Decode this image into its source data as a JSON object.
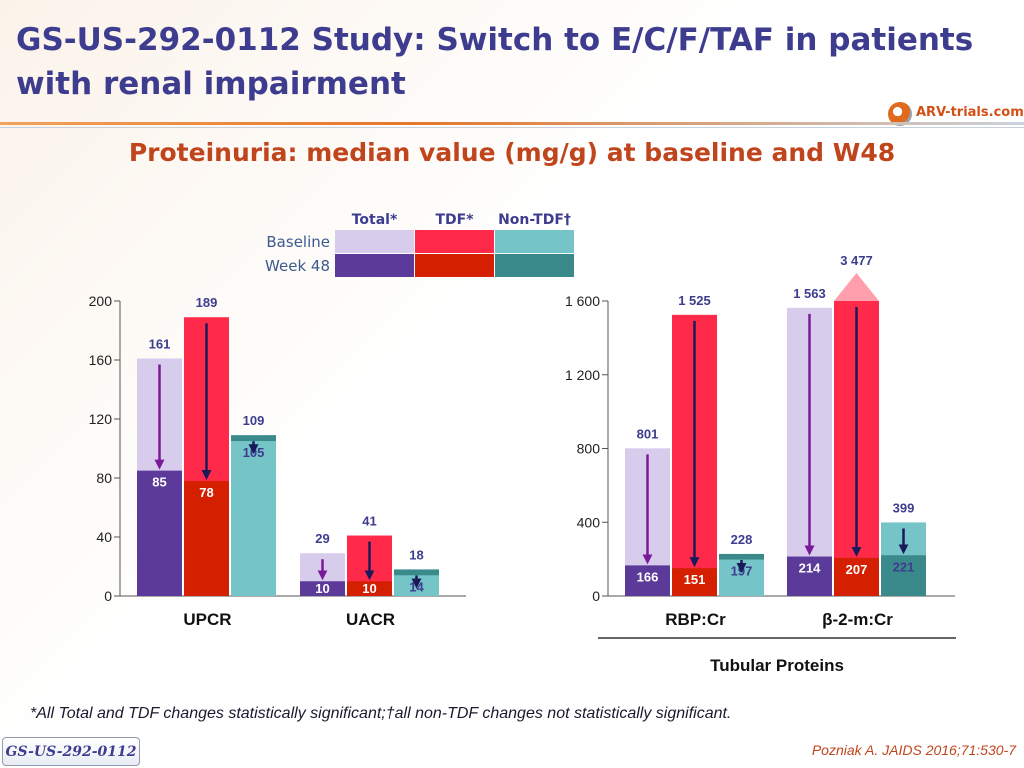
{
  "title": "GS-US-292-0112 Study: Switch to E/C/F/TAF in patients with renal impairment",
  "subtitle": "Proteinuria: median value (mg/g) at baseline and W48",
  "logo_text": "ARV-trials.com",
  "legend": {
    "columns": [
      "Total*",
      "TDF*",
      "Non-TDF†"
    ],
    "rows": [
      "Baseline",
      "Week 48"
    ]
  },
  "colors": {
    "total_baseline": "#d8ccec",
    "total_w48": "#5c3a9a",
    "tdf_baseline": "#ff2a4a",
    "tdf_w48": "#d42000",
    "nontdf_baseline": "#74c4c8",
    "nontdf_w48": "#3a8a8c",
    "arrow_total": "#7a1a9a",
    "arrow_other": "#1a1a5a",
    "label": "#3d3c8f"
  },
  "chart_data": [
    {
      "type": "bar",
      "categories": [
        "UPCR",
        "UACR"
      ],
      "series": [
        {
          "name": "Total*",
          "baseline": [
            161,
            29
          ],
          "week48": [
            85,
            10
          ]
        },
        {
          "name": "TDF*",
          "baseline": [
            189,
            41
          ],
          "week48": [
            78,
            10
          ]
        },
        {
          "name": "Non-TDF†",
          "baseline": [
            109,
            18
          ],
          "week48": [
            105,
            14
          ]
        }
      ],
      "yticks": [
        "0",
        "40",
        "80",
        "120",
        "160",
        "200"
      ],
      "ylim": [
        0,
        200
      ]
    },
    {
      "type": "bar",
      "categories": [
        "RBP:Cr",
        "β-2-m:Cr"
      ],
      "series": [
        {
          "name": "Total*",
          "baseline": [
            801,
            1563
          ],
          "week48": [
            166,
            214
          ]
        },
        {
          "name": "TDF*",
          "baseline": [
            1525,
            3477
          ],
          "week48": [
            151,
            207
          ]
        },
        {
          "name": "Non-TDF†",
          "baseline": [
            228,
            399
          ],
          "week48": [
            197,
            221
          ]
        }
      ],
      "baseline_labels": [
        [
          "801",
          "1 525",
          "228"
        ],
        [
          "1 563",
          "3 477",
          "399"
        ]
      ],
      "week48_labels": [
        [
          "166",
          "151",
          "197"
        ],
        [
          "214",
          "207",
          "221"
        ]
      ],
      "yticks": [
        "0",
        "400",
        "800",
        "1 200",
        "1 600"
      ],
      "ylim": [
        0,
        1600
      ],
      "group_label": "Tubular Proteins"
    }
  ],
  "footnote": "*All Total and TDF changes statistically significant;†all non-TDF changes not statistically significant.",
  "study_tag": "GS-US-292-0112",
  "citation": "Pozniak A. JAIDS 2016;71:530-7"
}
